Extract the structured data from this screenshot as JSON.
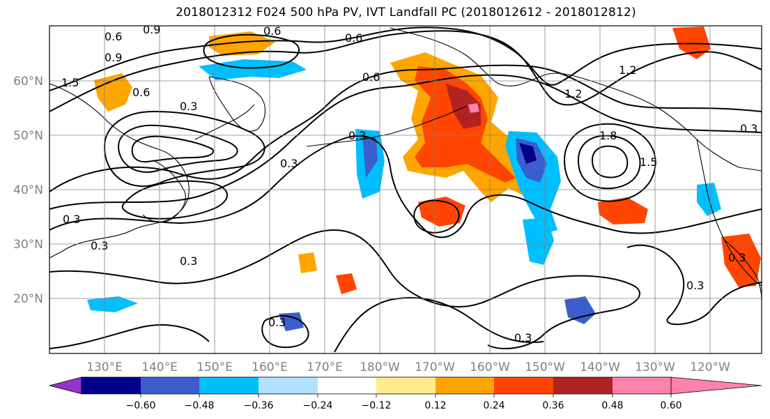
{
  "title": "2018012312 F024 500 hPa PV, IVT Landfall PC (2018012612 - 2018012812)",
  "lat_labels": [
    "60°N",
    "50°N",
    "40°N",
    "30°N",
    "20°N"
  ],
  "lon_labels": [
    "130°E",
    "140°E",
    "150°E",
    "160°E",
    "170°E",
    "180°W",
    "170°W",
    "160°W",
    "150°W",
    "140°W",
    "130°W",
    "120°W"
  ],
  "colorbar": {
    "ticks": [
      "−0.60",
      "−0.48",
      "−0.36",
      "−0.24",
      "−0.12",
      "0.12",
      "0.24",
      "0.36",
      "0.48",
      "0.60"
    ],
    "colors": [
      "#9932cc",
      "#00008b",
      "#3a5fcd",
      "#00bfff",
      "#b0e2ff",
      "#ffffff",
      "#ffec8b",
      "#ffa500",
      "#ff4500",
      "#b22222",
      "#ff82ab"
    ]
  },
  "contour_labels": [
    "0.6",
    "0.9",
    "0.6",
    "0.6",
    "0.9",
    "1.5",
    "0.6",
    "0.3",
    "0.3",
    "0.3",
    "0.3",
    "0.3",
    "0.3",
    "1.2",
    "1.5",
    "0.6",
    "0.3",
    "0.3",
    "0.3",
    "0.3",
    "0.3",
    "1.2",
    "1.8"
  ]
}
